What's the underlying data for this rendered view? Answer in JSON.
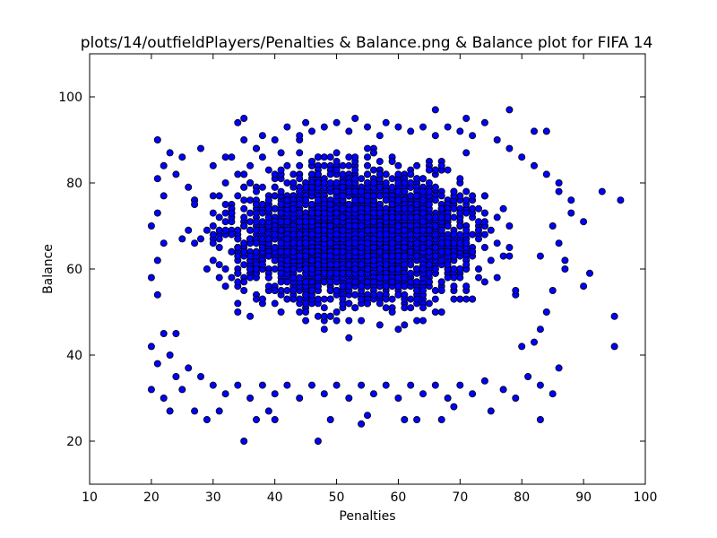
{
  "chart_data": {
    "type": "scatter",
    "title": "plots/14/outfieldPlayers/Penalties & Balance.png & Balance plot for FIFA 14",
    "xlabel": "Penalties",
    "ylabel": "Balance",
    "xlim": [
      10,
      100
    ],
    "ylim": [
      10,
      110
    ],
    "xticks": [
      "10",
      "20",
      "30",
      "40",
      "50",
      "60",
      "70",
      "80",
      "90",
      "100"
    ],
    "yticks": [
      "20",
      "40",
      "60",
      "80",
      "100"
    ],
    "grid": false,
    "marker_color": "#0000ff",
    "marker_edge_color": "#000000",
    "series": [
      {
        "points": [
          [
            21,
            90
          ],
          [
            35,
            95
          ],
          [
            66,
            97
          ],
          [
            78,
            97
          ],
          [
            34,
            94
          ],
          [
            45,
            94
          ],
          [
            53,
            95
          ],
          [
            58,
            94
          ],
          [
            71,
            95
          ],
          [
            74,
            94
          ],
          [
            82,
            92
          ],
          [
            84,
            92
          ],
          [
            93,
            78
          ],
          [
            96,
            76
          ],
          [
            95,
            49
          ],
          [
            95,
            42
          ],
          [
            91,
            59
          ],
          [
            90,
            56
          ],
          [
            87,
            62
          ],
          [
            88,
            73
          ],
          [
            90,
            71
          ],
          [
            86,
            80
          ],
          [
            35,
            20
          ],
          [
            47,
            20
          ],
          [
            54,
            24
          ],
          [
            29,
            25
          ],
          [
            37,
            25
          ],
          [
            40,
            25
          ],
          [
            49,
            25
          ],
          [
            61,
            25
          ],
          [
            63,
            25
          ],
          [
            67,
            25
          ],
          [
            75,
            27
          ],
          [
            83,
            25
          ],
          [
            23,
            27
          ],
          [
            27,
            27
          ],
          [
            31,
            27
          ],
          [
            39,
            27
          ],
          [
            55,
            26
          ],
          [
            69,
            28
          ],
          [
            20,
            32
          ],
          [
            22,
            30
          ],
          [
            25,
            32
          ],
          [
            21,
            38
          ],
          [
            20,
            42
          ],
          [
            22,
            45
          ],
          [
            21,
            54
          ],
          [
            20,
            58
          ],
          [
            21,
            62
          ],
          [
            22,
            66
          ],
          [
            20,
            70
          ],
          [
            21,
            73
          ],
          [
            22,
            77
          ],
          [
            21,
            81
          ],
          [
            22,
            84
          ],
          [
            23,
            87
          ],
          [
            24,
            82
          ],
          [
            25,
            86
          ],
          [
            26,
            79
          ],
          [
            27,
            75
          ],
          [
            28,
            88
          ],
          [
            30,
            84
          ],
          [
            33,
            86
          ],
          [
            35,
            90
          ],
          [
            38,
            91
          ],
          [
            40,
            90
          ],
          [
            42,
            93
          ],
          [
            44,
            91
          ],
          [
            46,
            92
          ],
          [
            48,
            93
          ],
          [
            50,
            94
          ],
          [
            52,
            92
          ],
          [
            55,
            93
          ],
          [
            57,
            91
          ],
          [
            60,
            93
          ],
          [
            62,
            92
          ],
          [
            64,
            93
          ],
          [
            66,
            91
          ],
          [
            68,
            93
          ],
          [
            70,
            92
          ],
          [
            72,
            91
          ],
          [
            76,
            90
          ],
          [
            78,
            88
          ],
          [
            80,
            86
          ],
          [
            82,
            84
          ],
          [
            84,
            82
          ],
          [
            86,
            78
          ],
          [
            88,
            76
          ],
          [
            85,
            70
          ],
          [
            86,
            66
          ],
          [
            87,
            60
          ],
          [
            85,
            55
          ],
          [
            84,
            50
          ],
          [
            83,
            46
          ],
          [
            82,
            43
          ],
          [
            80,
            42
          ],
          [
            86,
            37
          ],
          [
            85,
            31
          ],
          [
            83,
            33
          ],
          [
            81,
            35
          ],
          [
            79,
            30
          ],
          [
            77,
            32
          ],
          [
            74,
            34
          ],
          [
            72,
            31
          ],
          [
            70,
            33
          ],
          [
            68,
            30
          ],
          [
            66,
            33
          ],
          [
            64,
            31
          ],
          [
            62,
            33
          ],
          [
            60,
            30
          ],
          [
            58,
            33
          ],
          [
            56,
            31
          ],
          [
            54,
            33
          ],
          [
            52,
            30
          ],
          [
            50,
            33
          ],
          [
            48,
            31
          ],
          [
            46,
            33
          ],
          [
            44,
            30
          ],
          [
            42,
            33
          ],
          [
            40,
            31
          ],
          [
            38,
            33
          ],
          [
            36,
            30
          ],
          [
            34,
            33
          ],
          [
            32,
            31
          ],
          [
            30,
            33
          ],
          [
            28,
            35
          ],
          [
            26,
            37
          ],
          [
            24,
            35
          ],
          [
            23,
            40
          ],
          [
            24,
            45
          ]
        ]
      }
    ]
  }
}
